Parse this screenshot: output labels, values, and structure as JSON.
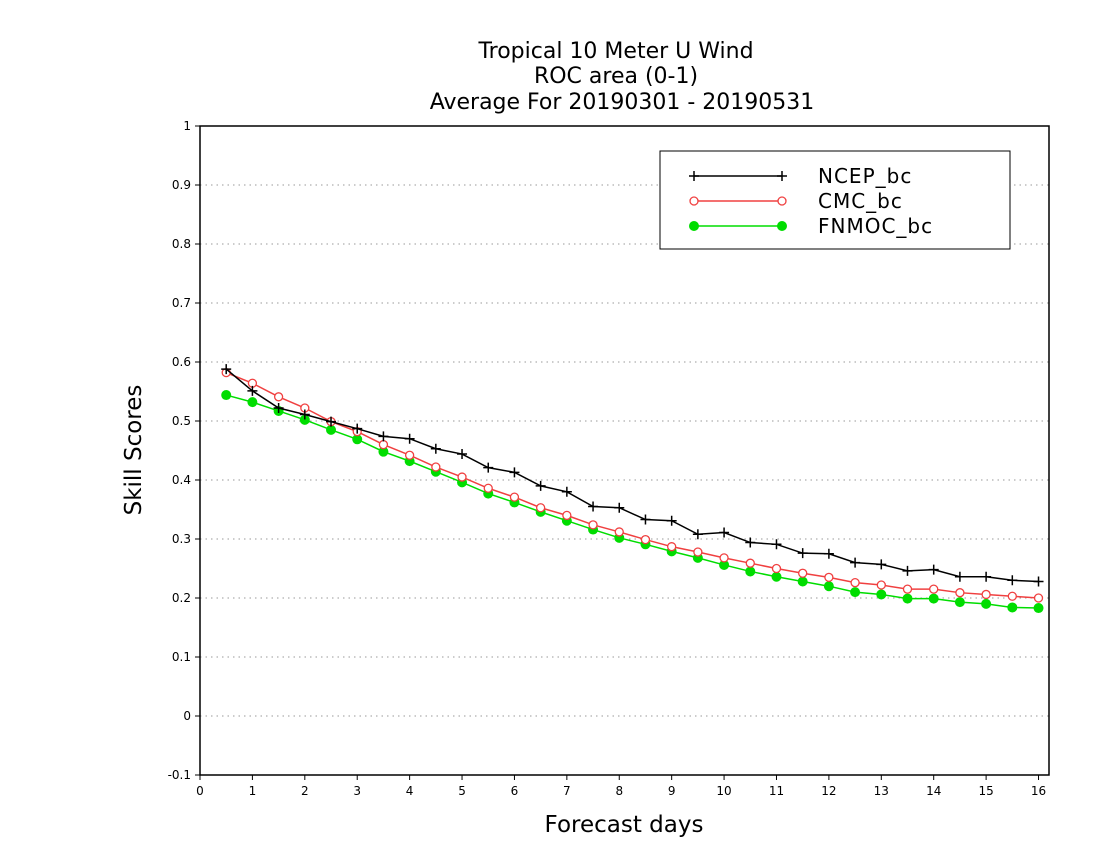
{
  "chart_data": {
    "type": "line",
    "title": [
      "Tropical 10 Meter U Wind",
      "ROC area (0-1)",
      "Average For 20190301 - 20190531"
    ],
    "xlabel": "Forecast days",
    "ylabel": "Skill Scores",
    "xlim": [
      0,
      16.2
    ],
    "ylim": [
      -0.1,
      1
    ],
    "xticks": [
      "0",
      "1",
      "2",
      "3",
      "4",
      "5",
      "6",
      "7",
      "8",
      "9",
      "10",
      "11",
      "12",
      "13",
      "14",
      "15",
      "16"
    ],
    "yticks": [
      "-0.1",
      "0",
      "0.1",
      "0.2",
      "0.3",
      "0.4",
      "0.5",
      "0.6",
      "0.7",
      "0.8",
      "0.9",
      "1"
    ],
    "grid": "horizontal dotted",
    "legend_position": "top-right",
    "x": [
      0.5,
      1,
      1.5,
      2,
      2.5,
      3,
      3.5,
      4,
      4.5,
      5,
      5.5,
      6,
      6.5,
      7,
      7.5,
      8,
      8.5,
      9,
      9.5,
      10,
      10.5,
      11,
      11.5,
      12,
      12.5,
      13,
      13.5,
      14,
      14.5,
      15,
      15.5,
      16
    ],
    "series": [
      {
        "name": "NCEP_bc",
        "color": "#000000",
        "marker": "plus",
        "values": [
          0.588,
          0.551,
          0.522,
          0.511,
          0.499,
          0.487,
          0.474,
          0.47,
          0.453,
          0.444,
          0.421,
          0.413,
          0.39,
          0.38,
          0.355,
          0.353,
          0.333,
          0.331,
          0.308,
          0.311,
          0.294,
          0.291,
          0.276,
          0.275,
          0.26,
          0.257,
          0.246,
          0.248,
          0.236,
          0.236,
          0.23,
          0.228
        ]
      },
      {
        "name": "CMC_bc",
        "color": "#f04040",
        "marker": "open-circle",
        "values": [
          0.582,
          0.564,
          0.541,
          0.522,
          0.499,
          0.482,
          0.46,
          0.442,
          0.422,
          0.405,
          0.386,
          0.371,
          0.353,
          0.34,
          0.324,
          0.312,
          0.299,
          0.287,
          0.278,
          0.268,
          0.259,
          0.25,
          0.242,
          0.235,
          0.226,
          0.222,
          0.215,
          0.215,
          0.209,
          0.206,
          0.203,
          0.2
        ]
      },
      {
        "name": "FNMOC_bc",
        "color": "#00dd00",
        "marker": "filled-circle",
        "values": [
          0.544,
          0.532,
          0.517,
          0.502,
          0.485,
          0.469,
          0.448,
          0.432,
          0.414,
          0.396,
          0.377,
          0.362,
          0.346,
          0.331,
          0.316,
          0.302,
          0.291,
          0.279,
          0.268,
          0.256,
          0.245,
          0.236,
          0.228,
          0.22,
          0.21,
          0.206,
          0.199,
          0.199,
          0.193,
          0.19,
          0.184,
          0.183
        ]
      }
    ]
  }
}
